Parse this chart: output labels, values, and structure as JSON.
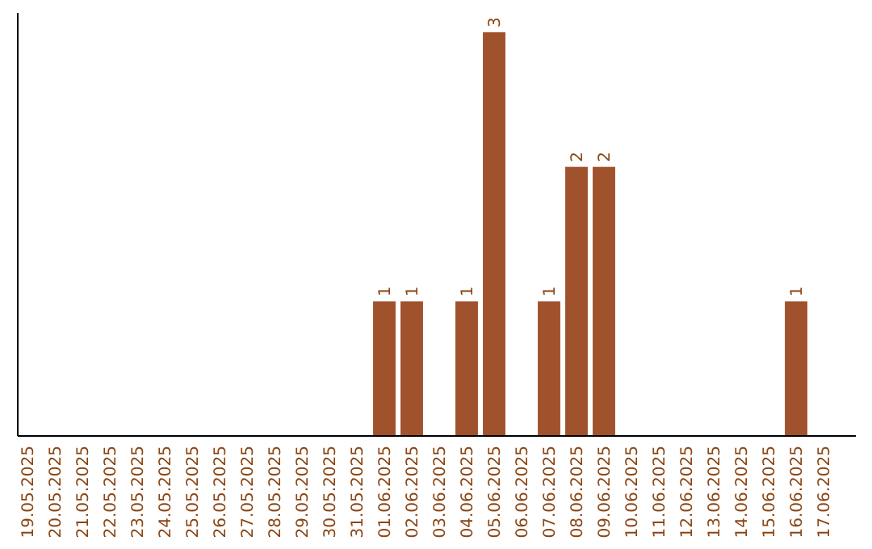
{
  "chart_data": {
    "type": "bar",
    "categories": [
      "19.05.2025",
      "20.05.2025",
      "21.05.2025",
      "22.05.2025",
      "23.05.2025",
      "24.05.2025",
      "25.05.2025",
      "26.05.2025",
      "27.05.2025",
      "28.05.2025",
      "29.05.2025",
      "30.05.2025",
      "31.05.2025",
      "01.06.2025",
      "02.06.2025",
      "03.06.2025",
      "04.06.2025",
      "05.06.2025",
      "06.06.2025",
      "07.06.2025",
      "08.06.2025",
      "09.06.2025",
      "10.06.2025",
      "11.06.2025",
      "12.06.2025",
      "13.06.2025",
      "14.06.2025",
      "15.06.2025",
      "16.06.2025",
      "17.06.2025"
    ],
    "values": [
      null,
      null,
      null,
      null,
      null,
      null,
      null,
      null,
      null,
      null,
      null,
      null,
      null,
      1,
      1,
      null,
      1,
      3,
      null,
      1,
      2,
      2,
      null,
      null,
      null,
      null,
      null,
      null,
      1,
      null
    ],
    "color": "#a0522d",
    "data_labels": true,
    "tick_labels": "x"
  }
}
